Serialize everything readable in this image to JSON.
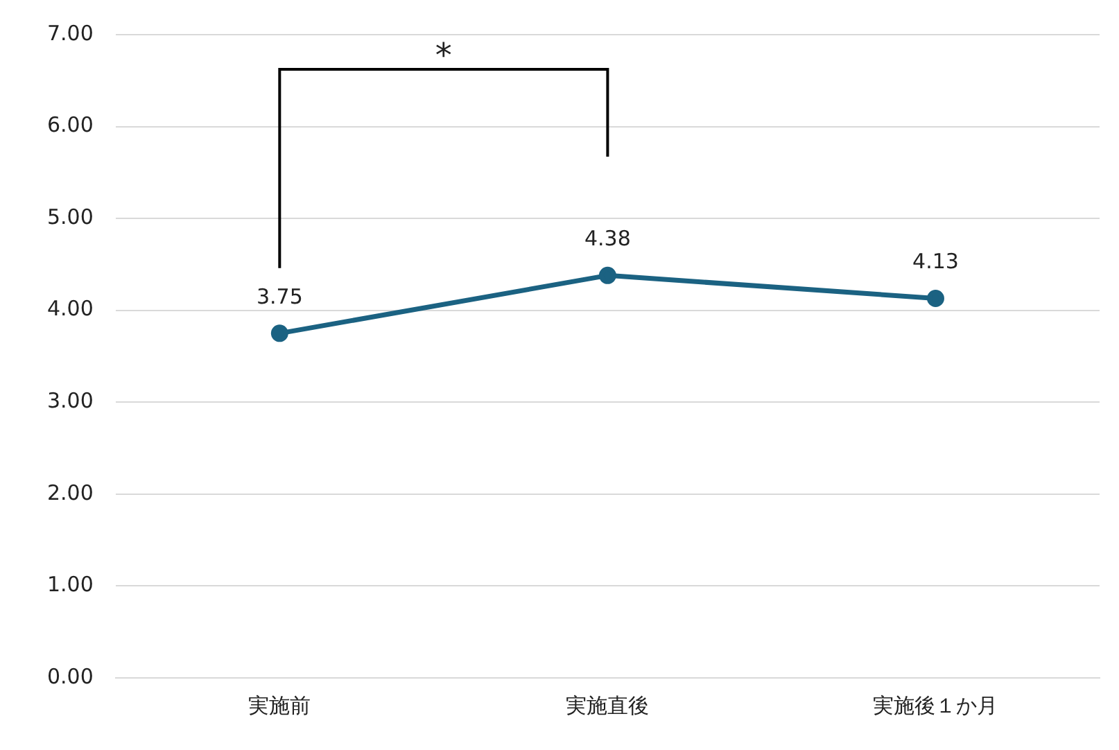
{
  "chart_data": {
    "type": "line",
    "categories": [
      "実施前",
      "実施直後",
      "実施後１か月"
    ],
    "series": [
      {
        "color": "#1b6282",
        "values": [
          3.75,
          4.38,
          4.13
        ]
      }
    ],
    "ylim": [
      0,
      7
    ],
    "yticks": [
      {
        "value": 0,
        "label": "0.00"
      },
      {
        "value": 1,
        "label": "1.00"
      },
      {
        "value": 2,
        "label": "2.00"
      },
      {
        "value": 3,
        "label": "3.00"
      },
      {
        "value": 4,
        "label": "4.00"
      },
      {
        "value": 5,
        "label": "5.00"
      },
      {
        "value": 6,
        "label": "6.00"
      },
      {
        "value": 7,
        "label": "7.00"
      }
    ],
    "grid": "y",
    "legend": false,
    "marker": "circle",
    "line_style": "solid",
    "data_labels": true,
    "annotations": [
      "*"
    ]
  }
}
